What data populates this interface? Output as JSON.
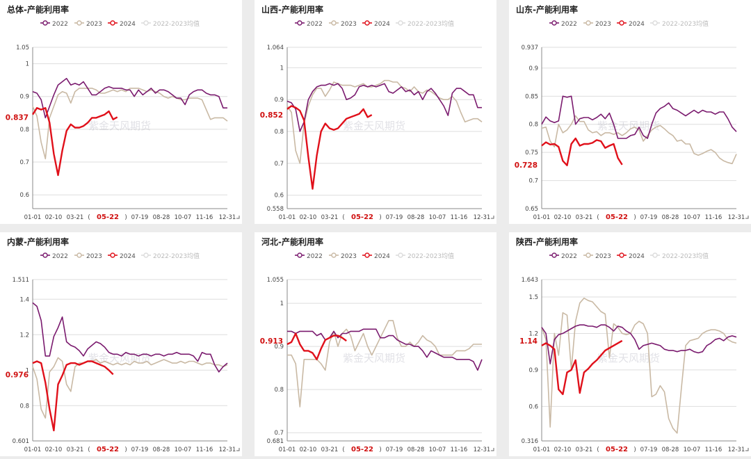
{
  "legend": {
    "items": [
      "2022",
      "2023",
      "2024",
      "2022-2023均值"
    ]
  },
  "colors": {
    "y2022": "#7a1a6e",
    "y2023": "#c9b9a4",
    "y2024": "#e0101a",
    "avg": "#dcdcdc",
    "axis": "#888888"
  },
  "watermark": "紫金天风期货",
  "x_ticks": [
    "01-01",
    "02-10",
    "03-21",
    "(",
    "05-22",
    ")",
    "07-19",
    "08-28",
    "10-07",
    "11-16",
    "12-31"
  ],
  "chart_data": [
    {
      "type": "line",
      "title": "总体-产能利用率",
      "ylim": [
        0.558,
        1.05
      ],
      "yticks": [
        "1.05",
        "1",
        "0.9",
        "0.8",
        "0.7",
        "0.6"
      ],
      "ytick_values": [
        1.05,
        1,
        0.9,
        0.8,
        0.7,
        0.6
      ],
      "y_min_label": "",
      "current_label": "0.837",
      "current_value": 0.837,
      "series": [
        {
          "name": "2022",
          "values": [
            0.915,
            0.91,
            0.89,
            0.835,
            0.87,
            0.905,
            0.935,
            0.945,
            0.955,
            0.935,
            0.94,
            0.935,
            0.945,
            0.925,
            0.905,
            0.905,
            0.915,
            0.925,
            0.93,
            0.925,
            0.925,
            0.925,
            0.92,
            0.92,
            0.9,
            0.92,
            0.905,
            0.915,
            0.925,
            0.91,
            0.92,
            0.92,
            0.915,
            0.905,
            0.895,
            0.895,
            0.875,
            0.905,
            0.915,
            0.92,
            0.92,
            0.91,
            0.905,
            0.905,
            0.9,
            0.865,
            0.865
          ]
        },
        {
          "name": "2023",
          "values": [
            0.87,
            0.84,
            0.76,
            0.71,
            0.835,
            0.87,
            0.905,
            0.915,
            0.91,
            0.88,
            0.915,
            0.925,
            0.925,
            0.925,
            0.925,
            0.92,
            0.91,
            0.91,
            0.915,
            0.92,
            0.915,
            0.92,
            0.915,
            0.925,
            0.925,
            0.925,
            0.92,
            0.915,
            0.92,
            0.915,
            0.91,
            0.9,
            0.895,
            0.9,
            0.895,
            0.89,
            0.89,
            0.895,
            0.895,
            0.895,
            0.89,
            0.86,
            0.83,
            0.835,
            0.835,
            0.835,
            0.825
          ]
        },
        {
          "name": "2024",
          "values": [
            0.845,
            0.865,
            0.86,
            0.865,
            0.82,
            0.725,
            0.66,
            0.735,
            0.795,
            0.815,
            0.805,
            0.805,
            0.81,
            0.82,
            0.835,
            0.835,
            0.84,
            0.845,
            0.855,
            0.83,
            0.837
          ]
        }
      ]
    },
    {
      "type": "line",
      "title": "山西-产能利用率",
      "ylim": [
        0.558,
        1.064
      ],
      "yticks": [
        "1.064",
        "1",
        "0.9",
        "0.8",
        "0.7",
        "0.6",
        "0.558"
      ],
      "ytick_values": [
        1.064,
        1,
        0.9,
        0.8,
        0.7,
        0.6,
        0.558
      ],
      "y_min_label": "0.558",
      "current_label": "0.852",
      "current_value": 0.852,
      "series": [
        {
          "name": "2022",
          "values": [
            0.895,
            0.89,
            0.87,
            0.8,
            0.83,
            0.9,
            0.925,
            0.94,
            0.945,
            0.945,
            0.95,
            0.945,
            0.95,
            0.935,
            0.9,
            0.905,
            0.915,
            0.94,
            0.945,
            0.94,
            0.945,
            0.94,
            0.945,
            0.95,
            0.925,
            0.92,
            0.93,
            0.94,
            0.925,
            0.93,
            0.915,
            0.925,
            0.9,
            0.925,
            0.935,
            0.92,
            0.9,
            0.88,
            0.85,
            0.92,
            0.935,
            0.935,
            0.925,
            0.915,
            0.915,
            0.875,
            0.875
          ]
        },
        {
          "name": "2023",
          "values": [
            0.88,
            0.86,
            0.74,
            0.7,
            0.825,
            0.88,
            0.915,
            0.935,
            0.935,
            0.91,
            0.93,
            0.955,
            0.95,
            0.945,
            0.945,
            0.945,
            0.94,
            0.945,
            0.95,
            0.94,
            0.94,
            0.945,
            0.95,
            0.96,
            0.96,
            0.955,
            0.955,
            0.94,
            0.935,
            0.925,
            0.94,
            0.925,
            0.92,
            0.93,
            0.925,
            0.915,
            0.905,
            0.9,
            0.9,
            0.91,
            0.895,
            0.86,
            0.83,
            0.835,
            0.84,
            0.84,
            0.83
          ]
        },
        {
          "name": "2024",
          "values": [
            0.87,
            0.88,
            0.875,
            0.865,
            0.835,
            0.72,
            0.62,
            0.725,
            0.8,
            0.825,
            0.81,
            0.805,
            0.81,
            0.825,
            0.84,
            0.845,
            0.85,
            0.855,
            0.87,
            0.845,
            0.852
          ]
        }
      ]
    },
    {
      "type": "line",
      "title": "山东-产能利用率",
      "ylim": [
        0.65,
        0.937
      ],
      "yticks": [
        "0.937",
        "0.9",
        "0.85",
        "0.8",
        "0.75",
        "0.7",
        "0.65"
      ],
      "ytick_values": [
        0.937,
        0.9,
        0.85,
        0.8,
        0.75,
        0.7,
        0.65
      ],
      "y_min_label": "",
      "current_label": "0.728",
      "current_value": 0.728,
      "series": [
        {
          "name": "2022",
          "values": [
            0.8,
            0.813,
            0.806,
            0.803,
            0.806,
            0.85,
            0.848,
            0.85,
            0.8,
            0.81,
            0.812,
            0.812,
            0.808,
            0.812,
            0.818,
            0.81,
            0.82,
            0.8,
            0.775,
            0.775,
            0.775,
            0.78,
            0.782,
            0.795,
            0.78,
            0.775,
            0.8,
            0.82,
            0.828,
            0.832,
            0.838,
            0.828,
            0.825,
            0.82,
            0.815,
            0.82,
            0.825,
            0.82,
            0.825,
            0.822,
            0.822,
            0.818,
            0.822,
            0.822,
            0.81,
            0.795,
            0.787
          ]
        },
        {
          "name": "2023",
          "values": [
            0.793,
            0.795,
            0.77,
            0.76,
            0.8,
            0.785,
            0.79,
            0.8,
            0.815,
            0.805,
            0.805,
            0.79,
            0.785,
            0.787,
            0.78,
            0.785,
            0.785,
            0.782,
            0.785,
            0.78,
            0.785,
            0.792,
            0.795,
            0.79,
            0.77,
            0.78,
            0.79,
            0.795,
            0.798,
            0.792,
            0.785,
            0.78,
            0.77,
            0.772,
            0.765,
            0.765,
            0.748,
            0.745,
            0.748,
            0.752,
            0.755,
            0.75,
            0.74,
            0.735,
            0.732,
            0.73,
            0.747
          ]
        },
        {
          "name": "2024",
          "values": [
            0.762,
            0.768,
            0.764,
            0.765,
            0.76,
            0.735,
            0.727,
            0.765,
            0.775,
            0.762,
            0.765,
            0.765,
            0.767,
            0.772,
            0.77,
            0.758,
            0.762,
            0.765,
            0.74,
            0.728
          ]
        }
      ]
    },
    {
      "type": "line",
      "title": "内蒙-产能利用率",
      "ylim": [
        0.601,
        1.511
      ],
      "yticks": [
        "1.511",
        "1.4",
        "1.2",
        "1",
        "0.8",
        "0.601"
      ],
      "ytick_values": [
        1.511,
        1.4,
        1.2,
        1,
        0.8,
        0.601
      ],
      "y_min_label": "",
      "current_label": "0.976",
      "current_value": 0.976,
      "series": [
        {
          "name": "2022",
          "values": [
            1.38,
            1.36,
            1.28,
            1.08,
            1.08,
            1.19,
            1.24,
            1.3,
            1.16,
            1.14,
            1.13,
            1.11,
            1.08,
            1.12,
            1.14,
            1.16,
            1.15,
            1.13,
            1.1,
            1.09,
            1.09,
            1.08,
            1.1,
            1.09,
            1.09,
            1.08,
            1.09,
            1.09,
            1.08,
            1.09,
            1.09,
            1.08,
            1.09,
            1.09,
            1.1,
            1.09,
            1.09,
            1.09,
            1.08,
            1.05,
            1.1,
            1.09,
            1.09,
            1.03,
            0.99,
            1.02,
            1.04
          ]
        },
        {
          "name": "2023",
          "values": [
            1.02,
            0.95,
            0.78,
            0.73,
            0.99,
            1.02,
            1.07,
            1.05,
            0.92,
            0.88,
            1.02,
            1.04,
            1.04,
            1.05,
            1.05,
            1.06,
            1.04,
            1.05,
            1.04,
            1.03,
            1.04,
            1.03,
            1.04,
            1.03,
            1.05,
            1.04,
            1.04,
            1.05,
            1.03,
            1.04,
            1.05,
            1.06,
            1.05,
            1.04,
            1.04,
            1.05,
            1.04,
            1.05,
            1.05,
            1.04,
            1.03,
            1.04,
            1.04,
            1.03,
            1.03,
            1.02,
            1.03
          ]
        },
        {
          "name": "2024",
          "values": [
            1.04,
            1.05,
            1.04,
            0.93,
            0.78,
            0.66,
            0.92,
            0.97,
            1.03,
            1.04,
            1.04,
            1.03,
            1.04,
            1.05,
            1.05,
            1.04,
            1.03,
            1.02,
            1.0,
            0.976
          ]
        }
      ]
    },
    {
      "type": "line",
      "title": "河北-产能利用率",
      "ylim": [
        0.681,
        1.055
      ],
      "yticks": [
        "1.055",
        "1",
        "0.9",
        "0.8",
        "0.7",
        "0.681"
      ],
      "ytick_values": [
        1.055,
        1,
        0.9,
        0.8,
        0.7,
        0.681
      ],
      "y_min_label": "0.681",
      "current_label": "0.913",
      "current_value": 0.913,
      "series": [
        {
          "name": "2022",
          "values": [
            0.935,
            0.935,
            0.93,
            0.935,
            0.935,
            0.935,
            0.935,
            0.925,
            0.93,
            0.915,
            0.92,
            0.935,
            0.92,
            0.93,
            0.93,
            0.935,
            0.935,
            0.935,
            0.94,
            0.94,
            0.94,
            0.94,
            0.92,
            0.92,
            0.925,
            0.925,
            0.915,
            0.91,
            0.905,
            0.905,
            0.9,
            0.9,
            0.89,
            0.875,
            0.89,
            0.885,
            0.88,
            0.875,
            0.875,
            0.875,
            0.87,
            0.87,
            0.87,
            0.87,
            0.865,
            0.845,
            0.87
          ]
        },
        {
          "name": "2023",
          "values": [
            0.88,
            0.88,
            0.86,
            0.76,
            0.87,
            0.87,
            0.87,
            0.87,
            0.86,
            0.845,
            0.91,
            0.935,
            0.9,
            0.93,
            0.94,
            0.925,
            0.89,
            0.91,
            0.93,
            0.9,
            0.88,
            0.9,
            0.92,
            0.94,
            0.96,
            0.96,
            0.92,
            0.9,
            0.9,
            0.91,
            0.9,
            0.91,
            0.925,
            0.915,
            0.91,
            0.9,
            0.88,
            0.88,
            0.88,
            0.88,
            0.89,
            0.89,
            0.89,
            0.895,
            0.905,
            0.905,
            0.905
          ]
        },
        {
          "name": "2024",
          "values": [
            0.905,
            0.91,
            0.93,
            0.905,
            0.89,
            0.89,
            0.885,
            0.87,
            0.895,
            0.915,
            0.92,
            0.925,
            0.925,
            0.92,
            0.913
          ]
        }
      ]
    },
    {
      "type": "line",
      "title": "陕西-产能利用率",
      "ylim": [
        0.316,
        1.643
      ],
      "yticks": [
        "1.643",
        "1.5",
        "1.2",
        "0.9",
        "0.6",
        "0.316"
      ],
      "ytick_values": [
        1.643,
        1.5,
        1.2,
        0.9,
        0.6,
        0.316
      ],
      "y_min_label": "",
      "current_label": "1.14",
      "current_value": 1.14,
      "series": [
        {
          "name": "2022",
          "values": [
            1.25,
            1.2,
            0.95,
            1.15,
            1.19,
            1.2,
            1.22,
            1.24,
            1.26,
            1.27,
            1.27,
            1.26,
            1.26,
            1.25,
            1.27,
            1.27,
            1.25,
            1.22,
            1.26,
            1.25,
            1.22,
            1.2,
            1.15,
            1.07,
            1.1,
            1.11,
            1.12,
            1.11,
            1.1,
            1.07,
            1.06,
            1.06,
            1.05,
            1.06,
            1.06,
            1.07,
            1.05,
            1.04,
            1.05,
            1.1,
            1.12,
            1.15,
            1.16,
            1.14,
            1.17,
            1.18,
            1.17
          ]
        },
        {
          "name": "2023",
          "values": [
            1.25,
            1.15,
            0.43,
            1.2,
            1.02,
            1.37,
            1.35,
            0.9,
            1.3,
            1.45,
            1.49,
            1.47,
            1.46,
            1.42,
            1.38,
            1.36,
            1.0,
            1.28,
            1.25,
            1.2,
            1.19,
            1.2,
            1.27,
            1.3,
            1.28,
            1.2,
            0.68,
            0.7,
            0.77,
            0.72,
            0.5,
            0.42,
            0.38,
            0.75,
            1.1,
            1.14,
            1.15,
            1.16,
            1.2,
            1.22,
            1.23,
            1.23,
            1.22,
            1.2,
            1.15,
            1.13,
            1.12
          ]
        },
        {
          "name": "2024",
          "values": [
            1.1,
            1.12,
            1.1,
            1.07,
            0.74,
            0.7,
            0.88,
            0.9,
            0.98,
            0.71,
            0.88,
            0.91,
            0.95,
            0.98,
            1.02,
            1.06,
            1.08,
            1.1,
            1.12,
            1.14
          ]
        }
      ]
    }
  ]
}
